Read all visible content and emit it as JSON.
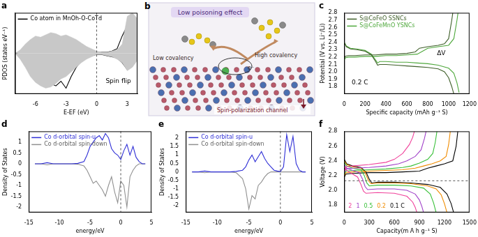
{
  "chart_data": [
    {
      "type": "line",
      "title": "a",
      "x_label": "E-EF (eV)",
      "y_label": "PDOS (states eV⁻¹)",
      "x": [
        -8,
        -7.5,
        -7,
        -6.5,
        -6,
        -5.5,
        -5,
        -4.5,
        -4,
        -3.5,
        -3,
        -2.5,
        -2,
        -1.5,
        -1,
        -0.5,
        0,
        0.5,
        1,
        1.5,
        2,
        2.5,
        3,
        3.5,
        4
      ],
      "series": [
        {
          "type": "area",
          "color": "#c8c8c8",
          "values": [
            0,
            0.3,
            0.8,
            1.2,
            1.5,
            1.4,
            1.6,
            1.8,
            1.7,
            1.5,
            1.6,
            1.4,
            1.2,
            0.9,
            0.6,
            0.4,
            0.2,
            0.1,
            0.1,
            0.2,
            0.3,
            0.8,
            3.2,
            3.5,
            3.0
          ]
        },
        {
          "type": "area",
          "color": "#c8c8c8",
          "values": [
            0,
            -0.5,
            -1.2,
            -2.0,
            -2.5,
            -2.8,
            -3.0,
            -2.9,
            -2.6,
            -2.2,
            -2.0,
            -1.6,
            -1.2,
            -0.8,
            -0.5,
            -0.3,
            -0.1,
            -0.1,
            -0.2,
            -0.3,
            -0.5,
            -0.8,
            -1.5,
            -1.2,
            -0.6
          ]
        },
        {
          "name": "Co atom in MnOh-O-CoTd",
          "type": "line",
          "color": "#000000",
          "values": [
            0,
            0.1,
            0.2,
            0.4,
            0.5,
            0.4,
            0.3,
            0.3,
            0.4,
            0.5,
            0.6,
            0.9,
            1.1,
            0.8,
            0.5,
            0.3,
            0.1,
            0.1,
            0.1,
            0.2,
            0.4,
            1.5,
            2.4,
            2.0,
            1.2
          ]
        },
        {
          "type": "line",
          "color": "#000000",
          "values": [
            0,
            -0.2,
            -0.4,
            -0.8,
            -1.2,
            -1.6,
            -2.2,
            -2.6,
            -2.8,
            -2.4,
            -3.0,
            -2.0,
            -1.2,
            -0.6,
            -0.3,
            -0.2,
            -0.1,
            -0.1,
            -0.2,
            -0.3,
            -0.4,
            -0.8,
            -1.4,
            -0.9,
            -0.4
          ]
        }
      ],
      "xlim": [
        -8,
        4
      ],
      "xticks": [
        -6,
        -3,
        0,
        3
      ],
      "ylim": [
        -3.5,
        3.5
      ],
      "yticks": [],
      "tick_labels": "x",
      "grid": false,
      "legend": "upper left",
      "vline": 0,
      "annotations": [
        "Spin flip"
      ]
    },
    {
      "type": "line",
      "title": "c",
      "x_label": "Specific capacity (mAh g⁻¹ S)",
      "y_label": "Potential (V vs. Li⁺/Li)",
      "series": [
        {
          "name": "S@CoFeO SSNCs",
          "color": "#3f5f2a",
          "x": [
            0,
            20,
            60,
            120,
            200,
            260,
            300,
            320,
            340,
            400,
            500,
            600,
            700,
            800,
            900,
            960,
            1000,
            1030,
            1050,
            null,
            0,
            10,
            40,
            100,
            200,
            300,
            400,
            500,
            600,
            680,
            720,
            800,
            900,
            960,
            1000,
            1030,
            1040
          ],
          "values": [
            2.4,
            2.34,
            2.31,
            2.3,
            2.28,
            2.23,
            2.14,
            2.09,
            2.1,
            2.1,
            2.09,
            2.08,
            2.07,
            2.06,
            2.04,
            2.0,
            1.92,
            1.8,
            1.7,
            null,
            2.18,
            2.21,
            2.22,
            2.22,
            2.23,
            2.23,
            2.24,
            2.24,
            2.25,
            2.27,
            2.32,
            2.34,
            2.36,
            2.38,
            2.45,
            2.7,
            2.8
          ]
        },
        {
          "name": "S@CoFeMnO YSNCs",
          "color": "#4fa83c",
          "x": [
            0,
            20,
            60,
            120,
            200,
            260,
            300,
            320,
            340,
            400,
            500,
            600,
            700,
            800,
            900,
            1000,
            1050,
            1080,
            1100,
            null,
            0,
            10,
            40,
            100,
            200,
            300,
            400,
            500,
            600,
            700,
            750,
            800,
            900,
            1000,
            1050,
            1080,
            1090
          ],
          "values": [
            2.4,
            2.35,
            2.32,
            2.31,
            2.29,
            2.24,
            2.16,
            2.12,
            2.14,
            2.14,
            2.13,
            2.13,
            2.12,
            2.11,
            2.09,
            2.05,
            1.98,
            1.85,
            1.72,
            null,
            2.16,
            2.19,
            2.2,
            2.2,
            2.21,
            2.21,
            2.22,
            2.22,
            2.23,
            2.24,
            2.28,
            2.32,
            2.34,
            2.36,
            2.45,
            2.7,
            2.8
          ]
        }
      ],
      "xlim": [
        0,
        1200
      ],
      "xticks": [
        0,
        200,
        400,
        600,
        800,
        1000,
        1200
      ],
      "ylim": [
        1.7,
        2.8
      ],
      "yticks": [
        1.8,
        1.9,
        {
          "value": 2,
          "label": "2.0"
        },
        2.1,
        2.2,
        2.3,
        2.4,
        2.5,
        2.6,
        2.7,
        2.8
      ],
      "grid": false,
      "legend": "upper left",
      "annotations": [
        "0.2 C",
        "ΔV"
      ]
    },
    {
      "type": "line",
      "title": "d",
      "x_label": "energy/eV",
      "y_label": "Density of States",
      "x": [
        -14,
        -13,
        -12,
        -11,
        -10,
        -9,
        -8,
        -7,
        -6,
        -5.5,
        -5,
        -4.5,
        -4,
        -3.5,
        -3,
        -2.5,
        -2,
        -1.5,
        -1,
        -0.5,
        0,
        0.5,
        1,
        1.5,
        2,
        2.5,
        3,
        3.5,
        4
      ],
      "series": [
        {
          "name": "Co d-orbital spin-u",
          "color": "#2f2fd6",
          "values": [
            0,
            0,
            0.05,
            0,
            0,
            0,
            0,
            0.02,
            0.1,
            0.4,
            0.8,
            1.0,
            1.2,
            1.3,
            1.1,
            1.4,
            1.2,
            0.7,
            0.5,
            0.4,
            0.2,
            0.6,
            0.9,
            0.4,
            0.8,
            0.3,
            0.1,
            0,
            0
          ]
        },
        {
          "name": "Co d-orbital spin-down",
          "color": "#909090",
          "values": [
            0,
            0,
            -0.05,
            0,
            0,
            0,
            0,
            -0.02,
            -0.1,
            -0.3,
            -0.6,
            -0.9,
            -0.8,
            -1.0,
            -1.2,
            -1.5,
            -1.0,
            -0.6,
            -1.3,
            -1.8,
            -0.8,
            -1.0,
            -2.0,
            -0.6,
            -0.3,
            -0.1,
            0,
            0,
            0
          ]
        }
      ],
      "xlim": [
        -15,
        5
      ],
      "xticks": [
        -15,
        -10,
        -5,
        0,
        5
      ],
      "ylim": [
        -2.25,
        1.5
      ],
      "yticks": [
        -2,
        -1.5,
        -1,
        -0.5,
        0,
        0.5,
        1
      ],
      "grid": false,
      "legend": "upper left",
      "vline": 0
    },
    {
      "type": "line",
      "title": "e",
      "x_label": "energy/eV",
      "y_label": "Density of States",
      "x": [
        -14,
        -13,
        -12,
        -11,
        -10,
        -9,
        -8,
        -7,
        -6,
        -5.5,
        -5,
        -4.5,
        -4,
        -3.5,
        -3,
        -2.5,
        -2,
        -1.5,
        -1,
        -0.5,
        0,
        0.5,
        1,
        1.5,
        2,
        2.5,
        3,
        3.5,
        4
      ],
      "series": [
        {
          "name": "Co d-orbital spin-u",
          "color": "#2f2fd6",
          "values": [
            0,
            0,
            0.05,
            0,
            0,
            0,
            0,
            0.03,
            0.1,
            0.3,
            0.7,
            1.0,
            0.6,
            0.9,
            1.2,
            0.8,
            0.5,
            0.3,
            0.1,
            0.05,
            0.02,
            0.3,
            2.2,
            1.2,
            2.1,
            0.5,
            0.1,
            0,
            0
          ]
        },
        {
          "name": "Co d-orbital spin-down",
          "color": "#909090",
          "values": [
            0,
            0,
            -0.05,
            0,
            0,
            0,
            0,
            -0.05,
            -0.4,
            -1.0,
            -2.2,
            -1.4,
            -1.6,
            -0.8,
            -0.6,
            -0.3,
            -0.1,
            0,
            0,
            0,
            0,
            0,
            0,
            0,
            0,
            0,
            0,
            0,
            0
          ]
        }
      ],
      "xlim": [
        -15,
        5
      ],
      "xticks": [
        -15,
        -10,
        -5,
        0,
        5
      ],
      "ylim": [
        -2.4,
        2.4
      ],
      "yticks": [
        -2,
        -1.5,
        -1,
        -0.5,
        0,
        0.5,
        1,
        1.5,
        2
      ],
      "grid": false,
      "legend": "upper left",
      "vline": 0
    },
    {
      "type": "line",
      "title": "f",
      "x_label": "Capacity(m A h g⁻¹ S)",
      "y_label": "Voltage (V)",
      "series": [
        {
          "name": "2",
          "color": "#f0409a",
          "x": [
            0,
            30,
            100,
            160,
            200,
            230,
            260,
            400,
            600,
            750,
            820,
            850,
            870,
            null,
            0,
            20,
            100,
            300,
            500,
            600,
            700,
            780,
            820,
            840
          ],
          "values": [
            2.32,
            2.27,
            2.22,
            2.18,
            2.08,
            1.99,
            1.96,
            1.97,
            1.96,
            1.92,
            1.84,
            1.77,
            1.7,
            null,
            2.26,
            2.32,
            2.33,
            2.35,
            2.38,
            2.42,
            2.5,
            2.62,
            2.72,
            2.8
          ]
        },
        {
          "name": "1",
          "color": "#a040c8",
          "x": [
            0,
            30,
            100,
            180,
            220,
            250,
            280,
            400,
            600,
            750,
            850,
            900,
            930,
            950,
            null,
            0,
            20,
            100,
            300,
            500,
            650,
            750,
            850,
            920,
            960,
            980
          ],
          "values": [
            2.35,
            2.3,
            2.27,
            2.24,
            2.15,
            2.05,
            2.01,
            2.02,
            2.02,
            2.0,
            1.95,
            1.87,
            1.78,
            1.7,
            null,
            2.24,
            2.29,
            2.3,
            2.31,
            2.33,
            2.36,
            2.4,
            2.46,
            2.55,
            2.7,
            2.8
          ]
        },
        {
          "name": "0.5",
          "color": "#38c038",
          "x": [
            0,
            30,
            100,
            200,
            240,
            270,
            300,
            400,
            600,
            800,
            950,
            1030,
            1070,
            1100,
            null,
            0,
            20,
            100,
            300,
            500,
            700,
            800,
            900,
            1000,
            1060,
            1090,
            1110
          ],
          "values": [
            2.38,
            2.33,
            2.3,
            2.28,
            2.2,
            2.1,
            2.06,
            2.07,
            2.07,
            2.06,
            2.03,
            1.95,
            1.83,
            1.7,
            null,
            2.22,
            2.26,
            2.27,
            2.28,
            2.29,
            2.31,
            2.33,
            2.37,
            2.42,
            2.5,
            2.65,
            2.8
          ]
        },
        {
          "name": "0.2",
          "color": "#f08c00",
          "x": [
            0,
            30,
            100,
            200,
            250,
            290,
            320,
            400,
            600,
            800,
            1000,
            1100,
            1160,
            1200,
            1230,
            null,
            0,
            20,
            100,
            300,
            500,
            700,
            850,
            950,
            1050,
            1150,
            1220,
            1250,
            1270
          ],
          "values": [
            2.4,
            2.35,
            2.32,
            2.3,
            2.24,
            2.13,
            2.09,
            2.1,
            2.1,
            2.09,
            2.06,
            2.02,
            1.94,
            1.82,
            1.7,
            null,
            2.2,
            2.24,
            2.25,
            2.26,
            2.27,
            2.28,
            2.3,
            2.33,
            2.36,
            2.4,
            2.46,
            2.62,
            2.8
          ]
        },
        {
          "name": "0.1 C",
          "color": "#000000",
          "x": [
            0,
            30,
            100,
            200,
            260,
            300,
            330,
            400,
            600,
            800,
            1000,
            1150,
            1230,
            1280,
            1310,
            null,
            0,
            20,
            100,
            300,
            500,
            700,
            900,
            1000,
            1100,
            1200,
            1300,
            1340,
            1360
          ],
          "values": [
            2.42,
            2.36,
            2.33,
            2.31,
            2.25,
            2.15,
            2.1,
            2.11,
            2.11,
            2.1,
            2.08,
            2.04,
            1.95,
            1.82,
            1.7,
            null,
            2.18,
            2.22,
            2.23,
            2.24,
            2.24,
            2.25,
            2.26,
            2.3,
            2.33,
            2.36,
            2.4,
            2.6,
            2.8
          ]
        }
      ],
      "xlim": [
        0,
        1500
      ],
      "xticks": [
        0,
        300,
        600,
        900,
        1200,
        1500
      ],
      "ylim": [
        1.7,
        2.8
      ],
      "yticks": [
        1.8,
        {
          "value": 2,
          "label": "2.0"
        },
        2.2,
        2.4,
        2.6,
        2.8
      ],
      "grid": false,
      "legend": "lower left",
      "hline": 2.13
    }
  ],
  "diagram": {
    "title": "b",
    "labels": {
      "top": "Low poisoning effect",
      "left": "Low covalency",
      "right": "High covalency",
      "bottom": "Spin-polarization channel",
      "electron": "e⁻"
    }
  }
}
